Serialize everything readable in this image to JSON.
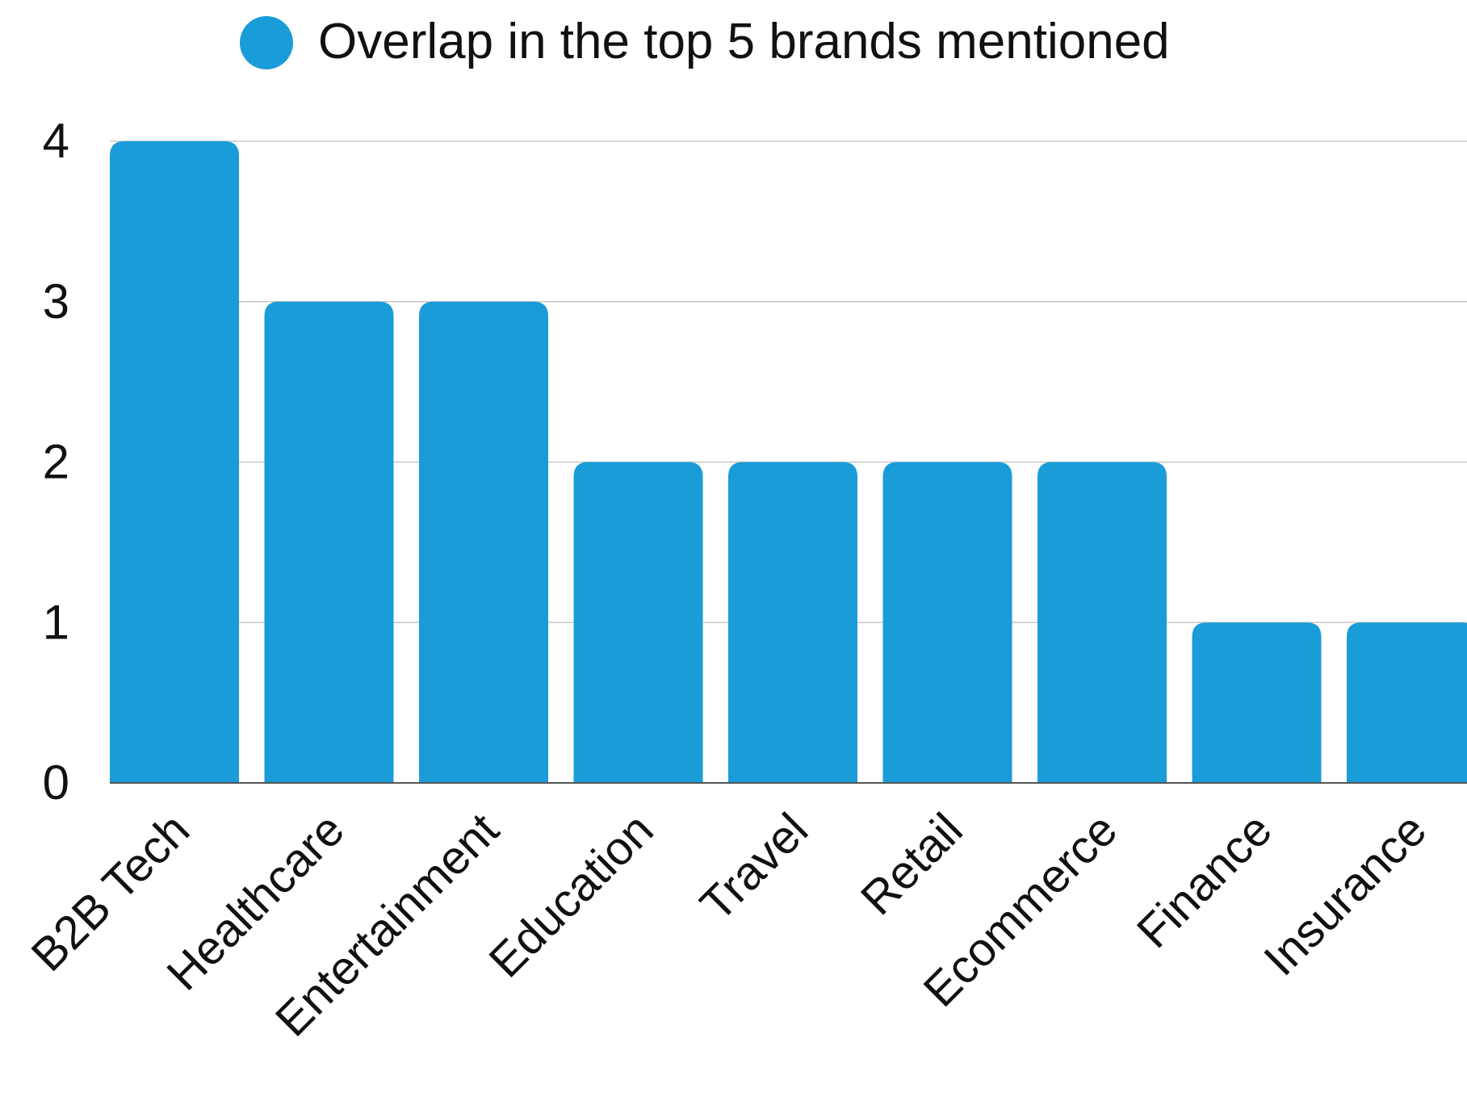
{
  "chart_data": {
    "type": "bar",
    "legend": {
      "label": "Overlap in the top 5 brands mentioned",
      "position": "top-center"
    },
    "categories": [
      "B2B Tech",
      "Healthcare",
      "Entertainment",
      "Education",
      "Travel",
      "Retail",
      "Ecommerce",
      "Finance",
      "Insurance"
    ],
    "series": [
      {
        "name": "Overlap in the top 5 brands mentioned",
        "values": [
          4,
          3,
          3,
          2,
          2,
          2,
          2,
          1,
          1
        ]
      }
    ],
    "ylim": [
      0,
      4
    ],
    "yticks": [
      0,
      1,
      2,
      3,
      4
    ],
    "grid": true,
    "x_tick_rotation_deg": -45
  },
  "colors": {
    "bar": "#1a9cd8",
    "grid": "#c8c8c8",
    "axis": "#555555",
    "text": "#111111"
  }
}
